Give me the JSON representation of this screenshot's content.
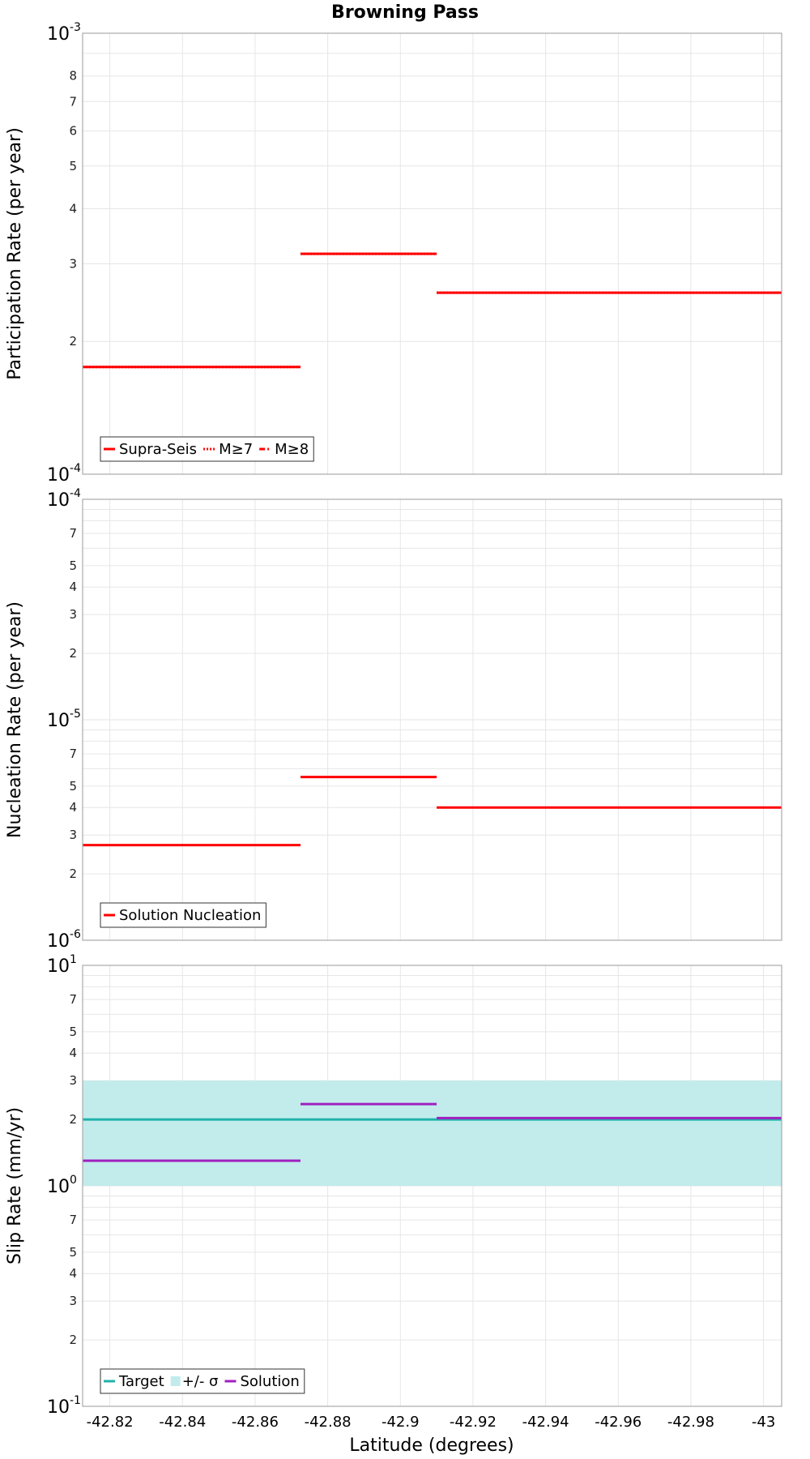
{
  "chart_data": [
    {
      "type": "line",
      "title": "Browning Pass",
      "ylabel": "Participation Rate (per year)",
      "xlabel": "",
      "yscale": "log",
      "ylim": [
        0.0001,
        0.001
      ],
      "y_major_ticks": [
        {
          "value": 0.0001,
          "base": "10",
          "exp": "-4"
        },
        {
          "value": 0.001,
          "base": "10",
          "exp": "-3"
        }
      ],
      "y_minor_ticks": [
        {
          "value": 0.0002,
          "label": "2"
        },
        {
          "value": 0.0003,
          "label": "3"
        },
        {
          "value": 0.0004,
          "label": "4"
        },
        {
          "value": 0.0005,
          "label": "5"
        },
        {
          "value": 0.0006,
          "label": "6"
        },
        {
          "value": 0.0007,
          "label": "7"
        },
        {
          "value": 0.0008,
          "label": "8"
        }
      ],
      "y_grid_values": [
        0.0001,
        0.0002,
        0.0003,
        0.0004,
        0.0005,
        0.0006,
        0.0007,
        0.0008,
        0.0009,
        0.001
      ],
      "legend": {
        "position": "bottom-left",
        "entries": [
          {
            "label": "Supra-Seis",
            "color": "#ff0000",
            "style": "solid"
          },
          {
            "label": "M≥7",
            "color": "#ff0000",
            "style": "dotted"
          },
          {
            "label": "M≥8",
            "color": "#ff0000",
            "style": "dashdot"
          }
        ]
      },
      "series": [
        {
          "name": "Supra-Seis",
          "color": "#ff0000",
          "style": "solid",
          "segments": [
            {
              "x0": -42.8125,
              "x1": -42.8725,
              "y": 0.000175
            },
            {
              "x0": -42.8725,
              "x1": -42.91,
              "y": 0.000316
            },
            {
              "x0": -42.91,
              "x1": -43.005,
              "y": 0.000258
            }
          ]
        },
        {
          "name": "M≥7",
          "color": "#ff0000",
          "style": "dotted",
          "segments": [
            {
              "x0": -42.8125,
              "x1": -42.8725,
              "y": 0.000175
            },
            {
              "x0": -42.8725,
              "x1": -42.91,
              "y": 0.000316
            },
            {
              "x0": -42.91,
              "x1": -43.005,
              "y": 0.000258
            }
          ]
        }
      ]
    },
    {
      "type": "line",
      "title": "",
      "ylabel": "Nucleation Rate (per year)",
      "xlabel": "",
      "yscale": "log",
      "ylim": [
        1e-06,
        0.0001
      ],
      "y_major_ticks": [
        {
          "value": 1e-06,
          "base": "10",
          "exp": "-6"
        },
        {
          "value": 1e-05,
          "base": "10",
          "exp": "-5"
        },
        {
          "value": 0.0001,
          "base": "10",
          "exp": "-4"
        }
      ],
      "y_minor_ticks": [
        {
          "value": 2e-06,
          "label": "2"
        },
        {
          "value": 3e-06,
          "label": "3"
        },
        {
          "value": 4e-06,
          "label": "4"
        },
        {
          "value": 5e-06,
          "label": "5"
        },
        {
          "value": 7e-06,
          "label": "7"
        },
        {
          "value": 2e-05,
          "label": "2"
        },
        {
          "value": 3e-05,
          "label": "3"
        },
        {
          "value": 4e-05,
          "label": "4"
        },
        {
          "value": 5e-05,
          "label": "5"
        },
        {
          "value": 7e-05,
          "label": "7"
        }
      ],
      "y_grid_values": [
        1e-06,
        2e-06,
        3e-06,
        4e-06,
        5e-06,
        6e-06,
        7e-06,
        8e-06,
        9e-06,
        1e-05,
        2e-05,
        3e-05,
        4e-05,
        5e-05,
        6e-05,
        7e-05,
        8e-05,
        9e-05,
        0.0001
      ],
      "legend": {
        "position": "bottom-left",
        "entries": [
          {
            "label": "Solution Nucleation",
            "color": "#ff0000",
            "style": "solid"
          }
        ]
      },
      "series": [
        {
          "name": "Solution Nucleation",
          "color": "#ff0000",
          "style": "solid",
          "segments": [
            {
              "x0": -42.8125,
              "x1": -42.8725,
              "y": 2.7e-06
            },
            {
              "x0": -42.8725,
              "x1": -42.91,
              "y": 5.5e-06
            },
            {
              "x0": -42.91,
              "x1": -43.005,
              "y": 4e-06
            }
          ]
        }
      ]
    },
    {
      "type": "line",
      "title": "",
      "ylabel": "Slip Rate (mm/yr)",
      "xlabel": "Latitude (degrees)",
      "yscale": "log",
      "ylim": [
        0.1,
        10
      ],
      "y_major_ticks": [
        {
          "value": 0.1,
          "base": "10",
          "exp": "-1"
        },
        {
          "value": 1,
          "base": "10",
          "exp": "0"
        },
        {
          "value": 10,
          "base": "10",
          "exp": "1"
        }
      ],
      "y_minor_ticks": [
        {
          "value": 0.2,
          "label": "2"
        },
        {
          "value": 0.3,
          "label": "3"
        },
        {
          "value": 0.4,
          "label": "4"
        },
        {
          "value": 0.5,
          "label": "5"
        },
        {
          "value": 0.7,
          "label": "7"
        },
        {
          "value": 2,
          "label": "2"
        },
        {
          "value": 3,
          "label": "3"
        },
        {
          "value": 4,
          "label": "4"
        },
        {
          "value": 5,
          "label": "5"
        },
        {
          "value": 7,
          "label": "7"
        }
      ],
      "y_grid_values": [
        0.1,
        0.2,
        0.3,
        0.4,
        0.5,
        0.6,
        0.7,
        0.8,
        0.9,
        1,
        2,
        3,
        4,
        5,
        6,
        7,
        8,
        9,
        10
      ],
      "legend": {
        "position": "bottom-left",
        "entries": [
          {
            "label": "Target",
            "color": "#20b2aa",
            "style": "solid"
          },
          {
            "label": "+/- σ",
            "color": "#c2ecec",
            "style": "band"
          },
          {
            "label": "Solution",
            "color": "#a020c0",
            "style": "solid"
          }
        ]
      },
      "band": {
        "name": "+/- σ",
        "color": "#c2ecec",
        "y0": 1,
        "y1": 3,
        "x0": -42.8125,
        "x1": -43.005
      },
      "series": [
        {
          "name": "Target",
          "color": "#20b2aa",
          "style": "solid",
          "segments": [
            {
              "x0": -42.8125,
              "x1": -43.005,
              "y": 2
            }
          ]
        },
        {
          "name": "Solution",
          "color": "#a020c0",
          "style": "solid",
          "segments": [
            {
              "x0": -42.8125,
              "x1": -42.8725,
              "y": 1.3
            },
            {
              "x0": -42.8725,
              "x1": -42.91,
              "y": 2.35
            },
            {
              "x0": -42.91,
              "x1": -43.005,
              "y": 2.03
            }
          ]
        }
      ]
    }
  ],
  "x_axis": {
    "label": "Latitude (degrees)",
    "xlim": [
      -42.8125,
      -43.005
    ],
    "ticks": [
      {
        "value": -42.82,
        "label": "-42.82"
      },
      {
        "value": -42.84,
        "label": "-42.84"
      },
      {
        "value": -42.86,
        "label": "-42.86"
      },
      {
        "value": -42.88,
        "label": "-42.88"
      },
      {
        "value": -42.9,
        "label": "-42.9"
      },
      {
        "value": -42.92,
        "label": "-42.92"
      },
      {
        "value": -42.94,
        "label": "-42.94"
      },
      {
        "value": -42.96,
        "label": "-42.96"
      },
      {
        "value": -42.98,
        "label": "-42.98"
      },
      {
        "value": -43,
        "label": "-43"
      }
    ]
  }
}
